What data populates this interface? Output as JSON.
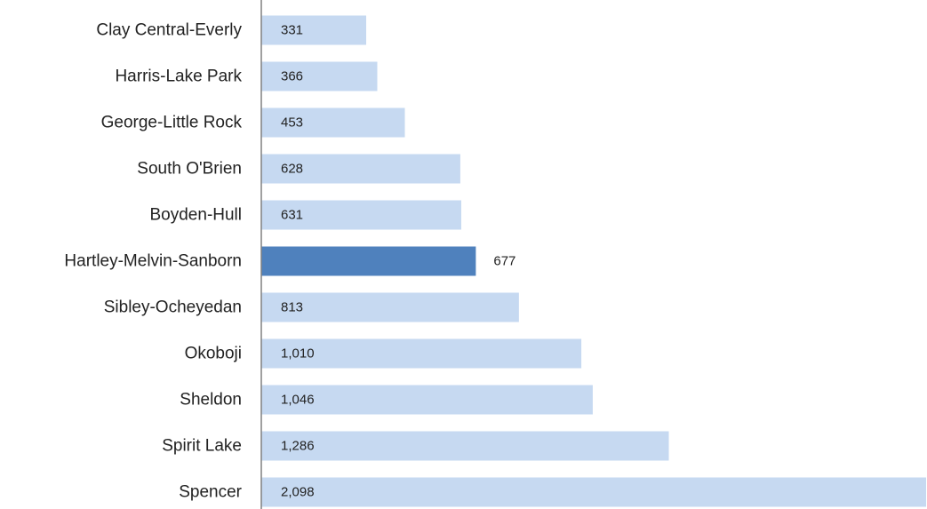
{
  "chart_data": {
    "type": "bar",
    "orientation": "horizontal",
    "categories": [
      "Clay Central-Everly",
      "Harris-Lake Park",
      "George-Little Rock",
      "South O'Brien",
      "Boyden-Hull",
      "Hartley-Melvin-Sanborn",
      "Sibley-Ocheyedan",
      "Okoboji",
      "Sheldon",
      "Spirit Lake",
      "Spencer"
    ],
    "values": [
      331,
      366,
      453,
      628,
      631,
      677,
      813,
      1010,
      1046,
      1286,
      2098
    ],
    "value_labels": [
      "331",
      "366",
      "453",
      "628",
      "631",
      "677",
      "813",
      "1,010",
      "1,046",
      "1,286",
      "2,098"
    ],
    "highlight_category": "Hartley-Melvin-Sanborn",
    "xlim": [
      0,
      2098
    ],
    "grid": false,
    "legend": "none",
    "colors": {
      "bar": "#c6d9f1",
      "highlight": "#4f81bd",
      "axis": "#808080",
      "text": "#222222"
    }
  }
}
